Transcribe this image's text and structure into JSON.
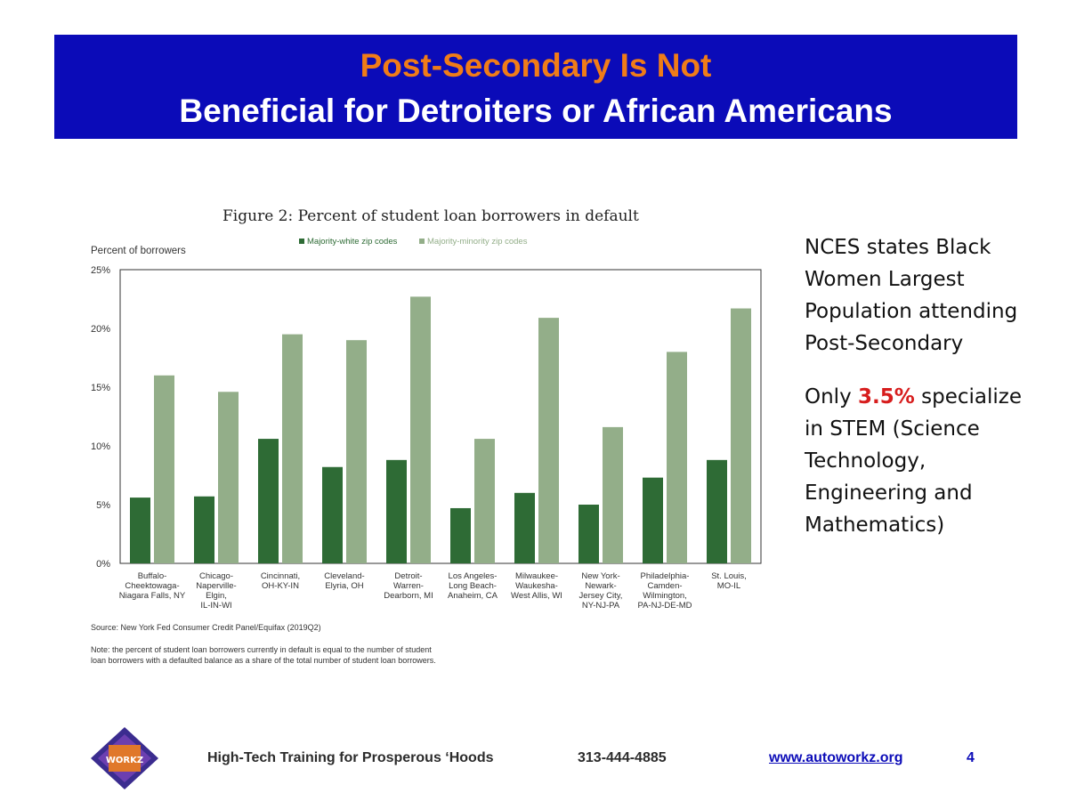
{
  "slide": {
    "title_line1": "Post-Secondary Is Not",
    "title_line2": "Beneficial for Detroiters or African Americans",
    "title_colors": {
      "banner_bg": "#0b0bb8",
      "line1": "#f07c18",
      "line2": "#ffffff"
    }
  },
  "figure": {
    "title": "Figure 2: Percent of student loan borrowers in default",
    "source": "Source: New York Fed Consumer Credit Panel/Equifax (2019Q2)",
    "note": "Note: the percent of student loan borrowers currently in default is equal to the number of student loan borrowers with a defaulted balance as a share of the total number of student loan borrowers."
  },
  "chart_data": {
    "type": "bar",
    "ylabel": "Percent of borrowers",
    "ylim": [
      0,
      25
    ],
    "yticks": [
      "0%",
      "5%",
      "10%",
      "15%",
      "20%",
      "25%"
    ],
    "legend_placement": "top",
    "categories": [
      [
        "Buffalo-",
        "Cheektowaga-",
        "Niagara Falls, NY"
      ],
      [
        "Chicago-",
        "Naperville-",
        "Elgin,",
        "IL-IN-WI"
      ],
      [
        "Cincinnati,",
        "OH-KY-IN"
      ],
      [
        "Cleveland-",
        "Elyria, OH"
      ],
      [
        "Detroit-",
        "Warren-",
        "Dearborn, MI"
      ],
      [
        "Los Angeles-",
        "Long Beach-",
        "Anaheim, CA"
      ],
      [
        "Milwaukee-",
        "Waukesha-",
        "West Allis, WI"
      ],
      [
        "New York-",
        "Newark-",
        "Jersey City,",
        "NY-NJ-PA"
      ],
      [
        "Philadelphia-",
        "Camden-",
        "Wilmington,",
        "PA-NJ-DE-MD"
      ],
      [
        "St. Louis,",
        "MO-IL"
      ]
    ],
    "series": [
      {
        "name": "Majority-white zip codes",
        "color": "#2e6b35",
        "values": [
          5.6,
          5.7,
          10.6,
          8.2,
          8.8,
          4.7,
          6.0,
          5.0,
          7.3,
          8.8
        ]
      },
      {
        "name": "Majority-minority zip codes",
        "color": "#93ae89",
        "values": [
          16.0,
          14.6,
          19.5,
          19.0,
          22.7,
          10.6,
          20.9,
          11.6,
          18.0,
          21.7
        ]
      }
    ]
  },
  "right_panel": {
    "para1": "NCES states Black Women Largest Population attending Post-Secondary",
    "para2_prefix": "Only ",
    "para2_highlight": "3.5%",
    "para2_suffix": " specialize in STEM (Science Technology, Engineering and Mathematics)",
    "highlight_color": "#d71d1d"
  },
  "footer": {
    "logo_icon": "autoworkz-logo-icon",
    "logo_text": "WORKZ",
    "tagline": "High-Tech Training for Prosperous ‘Hoods",
    "phone": "313-444-4885",
    "website": "www.autoworkz.org",
    "page_number": "4"
  }
}
